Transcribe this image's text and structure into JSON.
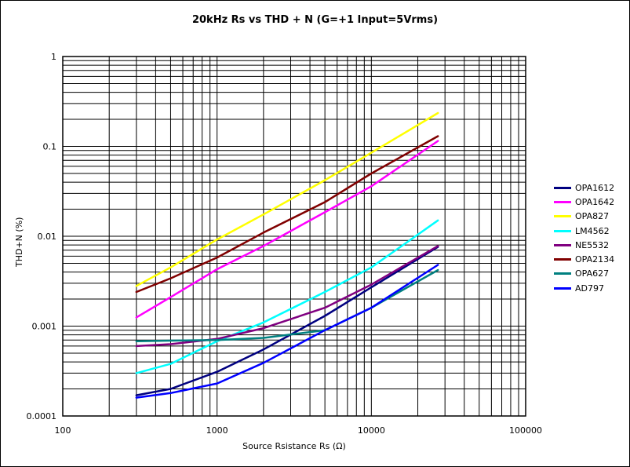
{
  "chart_data": {
    "type": "line",
    "title": "20kHz Rs vs THD + N (G=+1 Input=5Vrms)",
    "xlabel": "Source Rsistance Rs (Ω)",
    "ylabel": "THD+N (%)",
    "xscale": "log",
    "yscale": "log",
    "xlim": [
      100,
      100000
    ],
    "ylim": [
      0.0001,
      1
    ],
    "grid": true,
    "legend_position": "right",
    "x_ticks": [
      "100",
      "1000",
      "10000",
      "100000"
    ],
    "y_ticks": [
      "0.0001",
      "0.001",
      "0.01",
      "0.1",
      "1"
    ],
    "series": [
      {
        "name": "OPA1612",
        "color": "#000080",
        "x": [
          300,
          500,
          1000,
          2000,
          5000,
          10000,
          27000
        ],
        "y": [
          0.00017,
          0.0002,
          0.00031,
          0.00055,
          0.0013,
          0.0027,
          0.0076
        ]
      },
      {
        "name": "OPA1642",
        "color": "#ff00ff",
        "x": [
          300,
          500,
          1000,
          2000,
          5000,
          10000,
          27000
        ],
        "y": [
          0.00125,
          0.0021,
          0.0043,
          0.0078,
          0.0185,
          0.036,
          0.115
        ]
      },
      {
        "name": "OPA827",
        "color": "#ffff00",
        "x": [
          300,
          500,
          1000,
          2000,
          5000,
          10000,
          27000
        ],
        "y": [
          0.0028,
          0.0045,
          0.0092,
          0.0175,
          0.042,
          0.085,
          0.235
        ]
      },
      {
        "name": "LM4562",
        "color": "#00ffff",
        "x": [
          300,
          500,
          1000,
          2000,
          5000,
          10000,
          27000
        ],
        "y": [
          0.0003,
          0.00038,
          0.00068,
          0.0011,
          0.0024,
          0.0045,
          0.015
        ]
      },
      {
        "name": "NE5532",
        "color": "#800080",
        "x": [
          300,
          500,
          1000,
          2000,
          5000,
          10000,
          27000
        ],
        "y": [
          0.0006,
          0.00063,
          0.00072,
          0.00095,
          0.0016,
          0.0029,
          0.0078
        ]
      },
      {
        "name": "OPA2134",
        "color": "#800000",
        "x": [
          300,
          500,
          1000,
          2000,
          5000,
          10000,
          27000
        ],
        "y": [
          0.0024,
          0.0034,
          0.0058,
          0.011,
          0.024,
          0.05,
          0.13
        ]
      },
      {
        "name": "OPA627",
        "color": "#008080",
        "x": [
          300,
          500,
          1000,
          2000,
          5000,
          10000,
          27000
        ],
        "y": [
          0.00068,
          0.00069,
          0.0007,
          0.00074,
          0.0009,
          0.0016,
          0.0042
        ]
      },
      {
        "name": "AD797",
        "color": "#0000ff",
        "x": [
          300,
          500,
          1000,
          2000,
          5000,
          10000,
          27000
        ],
        "y": [
          0.00016,
          0.00018,
          0.00023,
          0.00039,
          0.0009,
          0.0016,
          0.0048
        ]
      }
    ]
  }
}
